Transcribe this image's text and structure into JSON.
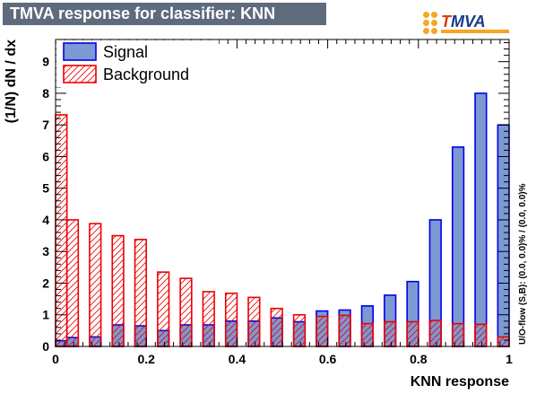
{
  "header": {
    "title": "TMVA response for classifier: KNN"
  },
  "logo": {
    "text_t": "T",
    "text_rest": "MVA",
    "accent": "#e03a12",
    "brand": "#1a3a8a",
    "bar": "#f5a623"
  },
  "side_note": "U/O-flow (S,B): (0.0, 0.0)% / (0.0, 0.0)%",
  "chart_data": {
    "type": "bar",
    "xlabel": "KNN response",
    "ylabel": "(1/N) dN / dx",
    "xlim": [
      0,
      1
    ],
    "ylim": [
      0,
      9.7
    ],
    "xticks": [
      0,
      0.2,
      0.4,
      0.6,
      0.8,
      1
    ],
    "xtick_labels": [
      "0",
      "0.2",
      "0.4",
      "0.6",
      "0.8",
      "1"
    ],
    "yticks": [
      0,
      1,
      2,
      3,
      4,
      5,
      6,
      7,
      8,
      9
    ],
    "ytick_labels": [
      "0",
      "1",
      "2",
      "3",
      "4",
      "5",
      "6",
      "7",
      "8",
      "9"
    ],
    "bin_edges": [
      0,
      0.025,
      0.05,
      0.075,
      0.1,
      0.125,
      0.15,
      0.175,
      0.2,
      0.225,
      0.25,
      0.275,
      0.3,
      0.325,
      0.35,
      0.375,
      0.4,
      0.425,
      0.45,
      0.475,
      0.5,
      0.525,
      0.55,
      0.575,
      0.6,
      0.625,
      0.65,
      0.675,
      0.7,
      0.725,
      0.75,
      0.775,
      0.8,
      0.825,
      0.85,
      0.875,
      0.9,
      0.925,
      0.95,
      0.975,
      1.0
    ],
    "series": [
      {
        "name": "Signal",
        "fill": "#7d99d1",
        "stroke": "#0000ee",
        "style": "solid",
        "values": [
          0.18,
          0.28,
          0,
          0.3,
          0,
          0.68,
          0,
          0.65,
          0,
          0.5,
          0,
          0.68,
          0,
          0.68,
          0,
          0.8,
          0,
          0.8,
          0,
          0.9,
          0,
          0.78,
          0,
          1.12,
          0,
          1.15,
          0,
          1.28,
          0,
          1.62,
          0,
          2.05,
          0,
          4.0,
          0,
          6.3,
          0,
          8.0,
          0,
          7.0
        ]
      },
      {
        "name": "Background",
        "fill": "none",
        "stroke": "#ee0000",
        "style": "hatched",
        "values": [
          7.32,
          4.0,
          0,
          3.88,
          0,
          3.5,
          0,
          3.38,
          0,
          2.35,
          0,
          2.15,
          0,
          1.73,
          0,
          1.68,
          0,
          1.55,
          0,
          1.2,
          0,
          1.0,
          0,
          0.95,
          0,
          0.98,
          0,
          0.72,
          0,
          0.78,
          0,
          0.78,
          0,
          0.82,
          0,
          0.72,
          0,
          0.7,
          0,
          0.3
        ]
      }
    ],
    "legend": {
      "placement": "top-left",
      "entries": [
        "Signal",
        "Background"
      ]
    }
  }
}
